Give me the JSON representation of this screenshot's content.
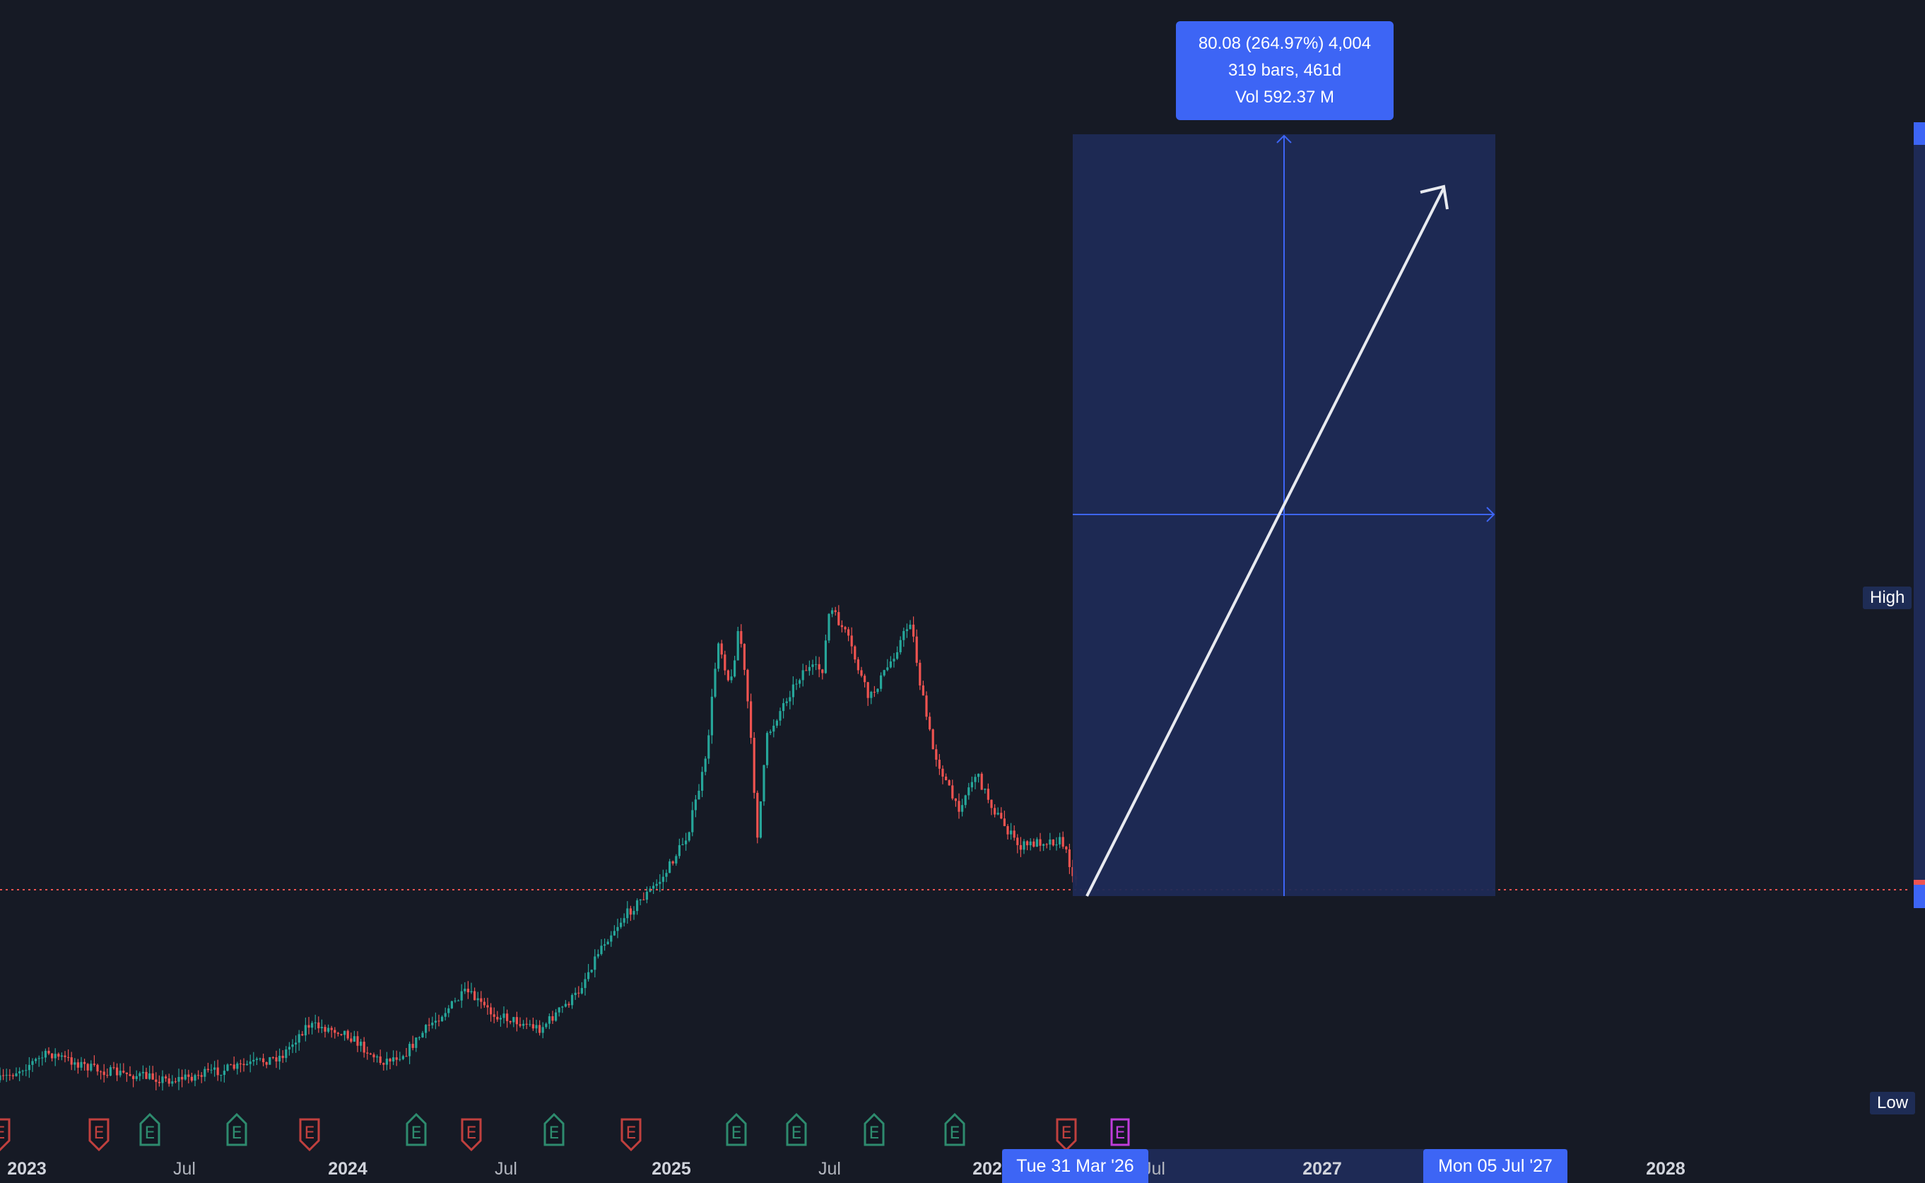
{
  "measure_tooltip": {
    "line1": "80.08 (264.97%) 4,004",
    "line2": "319 bars, 461d",
    "line3": "Vol 592.37 M"
  },
  "price_labels": {
    "high": "High",
    "low": "Low"
  },
  "time_axis": [
    {
      "label": "2023",
      "year": true
    },
    {
      "label": "Jul",
      "year": false
    },
    {
      "label": "2024",
      "year": true
    },
    {
      "label": "Jul",
      "year": false
    },
    {
      "label": "2025",
      "year": true
    },
    {
      "label": "Jul",
      "year": false
    },
    {
      "label": "2026",
      "year": true
    },
    {
      "label": "Jul",
      "year": false
    },
    {
      "label": "2027",
      "year": true
    },
    {
      "label": "2028",
      "year": true
    }
  ],
  "range_dates": {
    "start": "Tue 31 Mar '26",
    "end": "Mon 05 Jul '27"
  },
  "events": [
    {
      "kind": "miss"
    },
    {
      "kind": "miss"
    },
    {
      "kind": "beat"
    },
    {
      "kind": "beat"
    },
    {
      "kind": "miss"
    },
    {
      "kind": "beat"
    },
    {
      "kind": "miss"
    },
    {
      "kind": "beat"
    },
    {
      "kind": "miss"
    },
    {
      "kind": "beat"
    },
    {
      "kind": "beat"
    },
    {
      "kind": "beat"
    },
    {
      "kind": "beat"
    },
    {
      "kind": "miss"
    },
    {
      "kind": "upcoming"
    }
  ],
  "event_glyph": "E",
  "colors": {
    "background": "#161a25",
    "up": "#26a69a",
    "down": "#ef5350",
    "accent": "#3d65f5",
    "range_fill": "#1e2a55",
    "upcoming": "#c03ddb"
  }
}
